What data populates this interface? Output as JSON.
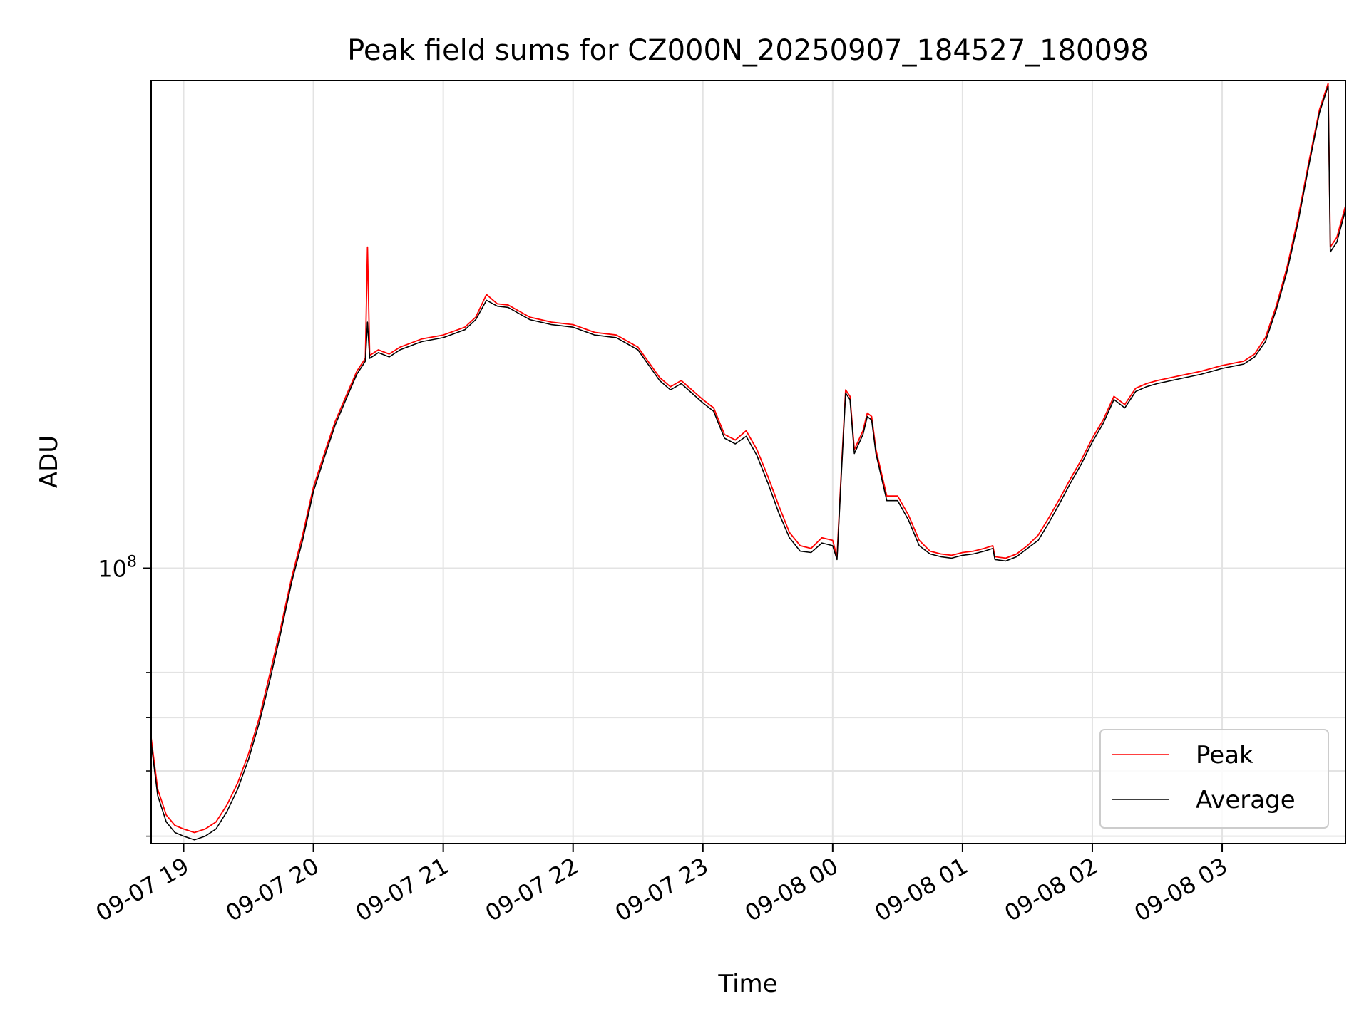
{
  "chart_data": {
    "type": "line",
    "title": "Peak field sums for CZ000N_20250907_184527_180098",
    "xlabel": "Time",
    "ylabel": "ADU",
    "x_tick_labels": [
      "09-07 19",
      "09-07 20",
      "09-07 21",
      "09-07 22",
      "09-07 23",
      "09-08 00",
      "09-08 01",
      "09-08 02",
      "09-08 03"
    ],
    "x_ticks": [
      "2025-09-07 19:00",
      "2025-09-07 20:00",
      "2025-09-07 21:00",
      "2025-09-07 22:00",
      "2025-09-07 23:00",
      "2025-09-08 00:00",
      "2025-09-08 01:00",
      "2025-09-08 02:00",
      "2025-09-08 03:00"
    ],
    "y_tick_labels": [
      {
        "base": "10",
        "exp": "8"
      }
    ],
    "y_ticks": [
      100000000
    ],
    "y_minor_ticks": [
      40000000,
      50000000,
      60000000,
      70000000
    ],
    "yscale": "log",
    "xlim": [
      "2025-09-07 18:45",
      "2025-09-08 03:57"
    ],
    "ylim": [
      39000000,
      530000000
    ],
    "grid": true,
    "legend_position": "lower right",
    "series": [
      {
        "name": "Peak",
        "color": "#ff0000",
        "points": [
          [
            "2025-09-07 18:45",
            56000000
          ],
          [
            "2025-09-07 18:48",
            47000000
          ],
          [
            "2025-09-07 18:52",
            43000000
          ],
          [
            "2025-09-07 18:56",
            41500000
          ],
          [
            "2025-09-07 19:00",
            41000000
          ],
          [
            "2025-09-07 19:05",
            40500000
          ],
          [
            "2025-09-07 19:10",
            41000000
          ],
          [
            "2025-09-07 19:15",
            42000000
          ],
          [
            "2025-09-07 19:20",
            44500000
          ],
          [
            "2025-09-07 19:25",
            48000000
          ],
          [
            "2025-09-07 19:30",
            53000000
          ],
          [
            "2025-09-07 19:35",
            60000000
          ],
          [
            "2025-09-07 19:40",
            70000000
          ],
          [
            "2025-09-07 19:45",
            82000000
          ],
          [
            "2025-09-07 19:50",
            97000000
          ],
          [
            "2025-09-07 19:55",
            112000000
          ],
          [
            "2025-09-07 20:00",
            132000000
          ],
          [
            "2025-09-07 20:05",
            148000000
          ],
          [
            "2025-09-07 20:10",
            165000000
          ],
          [
            "2025-09-07 20:15",
            180000000
          ],
          [
            "2025-09-07 20:20",
            196000000
          ],
          [
            "2025-09-07 20:24",
            205000000
          ],
          [
            "2025-09-07 20:25",
            300000000
          ],
          [
            "2025-09-07 20:26",
            207000000
          ],
          [
            "2025-09-07 20:30",
            211000000
          ],
          [
            "2025-09-07 20:35",
            208000000
          ],
          [
            "2025-09-07 20:40",
            213000000
          ],
          [
            "2025-09-07 20:50",
            219000000
          ],
          [
            "2025-09-07 21:00",
            222000000
          ],
          [
            "2025-09-07 21:10",
            228000000
          ],
          [
            "2025-09-07 21:15",
            236000000
          ],
          [
            "2025-09-07 21:20",
            255000000
          ],
          [
            "2025-09-07 21:25",
            247000000
          ],
          [
            "2025-09-07 21:30",
            246000000
          ],
          [
            "2025-09-07 21:40",
            236000000
          ],
          [
            "2025-09-07 21:50",
            232000000
          ],
          [
            "2025-09-07 22:00",
            230000000
          ],
          [
            "2025-09-07 22:10",
            224000000
          ],
          [
            "2025-09-07 22:20",
            222000000
          ],
          [
            "2025-09-07 22:30",
            213000000
          ],
          [
            "2025-09-07 22:40",
            192000000
          ],
          [
            "2025-09-07 22:45",
            186000000
          ],
          [
            "2025-09-07 22:50",
            190000000
          ],
          [
            "2025-09-07 23:00",
            178000000
          ],
          [
            "2025-09-07 23:05",
            173000000
          ],
          [
            "2025-09-07 23:10",
            158000000
          ],
          [
            "2025-09-07 23:15",
            155000000
          ],
          [
            "2025-09-07 23:20",
            160000000
          ],
          [
            "2025-09-07 23:25",
            150000000
          ],
          [
            "2025-09-07 23:30",
            137000000
          ],
          [
            "2025-09-07 23:35",
            124000000
          ],
          [
            "2025-09-07 23:40",
            113000000
          ],
          [
            "2025-09-07 23:45",
            108000000
          ],
          [
            "2025-09-07 23:50",
            107000000
          ],
          [
            "2025-09-07 23:55",
            111000000
          ],
          [
            "2025-09-08 00:00",
            110000000
          ],
          [
            "2025-09-08 00:02",
            104000000
          ],
          [
            "2025-09-08 00:04",
            140000000
          ],
          [
            "2025-09-08 00:06",
            184000000
          ],
          [
            "2025-09-08 00:08",
            180000000
          ],
          [
            "2025-09-08 00:10",
            150000000
          ],
          [
            "2025-09-08 00:14",
            160000000
          ],
          [
            "2025-09-08 00:16",
            170000000
          ],
          [
            "2025-09-08 00:18",
            168000000
          ],
          [
            "2025-09-08 00:20",
            150000000
          ],
          [
            "2025-09-08 00:25",
            128000000
          ],
          [
            "2025-09-08 00:30",
            128000000
          ],
          [
            "2025-09-08 00:35",
            120000000
          ],
          [
            "2025-09-08 00:40",
            110000000
          ],
          [
            "2025-09-08 00:45",
            106000000
          ],
          [
            "2025-09-08 00:50",
            105000000
          ],
          [
            "2025-09-08 00:55",
            104500000
          ],
          [
            "2025-09-08 01:00",
            105500000
          ],
          [
            "2025-09-08 01:05",
            106000000
          ],
          [
            "2025-09-08 01:10",
            107000000
          ],
          [
            "2025-09-08 01:14",
            108000000
          ],
          [
            "2025-09-08 01:15",
            104000000
          ],
          [
            "2025-09-08 01:20",
            103500000
          ],
          [
            "2025-09-08 01:25",
            105000000
          ],
          [
            "2025-09-08 01:30",
            108000000
          ],
          [
            "2025-09-08 01:35",
            112000000
          ],
          [
            "2025-09-08 01:40",
            119000000
          ],
          [
            "2025-09-08 01:45",
            127000000
          ],
          [
            "2025-09-08 01:50",
            136000000
          ],
          [
            "2025-09-08 01:55",
            145000000
          ],
          [
            "2025-09-08 02:00",
            156000000
          ],
          [
            "2025-09-08 02:05",
            166000000
          ],
          [
            "2025-09-08 02:10",
            180000000
          ],
          [
            "2025-09-08 02:15",
            175000000
          ],
          [
            "2025-09-08 02:20",
            185000000
          ],
          [
            "2025-09-08 02:25",
            188000000
          ],
          [
            "2025-09-08 02:30",
            190000000
          ],
          [
            "2025-09-08 02:40",
            193000000
          ],
          [
            "2025-09-08 02:50",
            196000000
          ],
          [
            "2025-09-08 03:00",
            200000000
          ],
          [
            "2025-09-08 03:10",
            203000000
          ],
          [
            "2025-09-08 03:15",
            208000000
          ],
          [
            "2025-09-08 03:20",
            220000000
          ],
          [
            "2025-09-08 03:25",
            245000000
          ],
          [
            "2025-09-08 03:30",
            280000000
          ],
          [
            "2025-09-08 03:35",
            330000000
          ],
          [
            "2025-09-08 03:40",
            400000000
          ],
          [
            "2025-09-08 03:45",
            480000000
          ],
          [
            "2025-09-08 03:49",
            525000000
          ],
          [
            "2025-09-08 03:50",
            300000000
          ],
          [
            "2025-09-08 03:53",
            310000000
          ],
          [
            "2025-09-08 03:57",
            345000000
          ]
        ]
      },
      {
        "name": "Average",
        "color": "#000000",
        "points": [
          [
            "2025-09-07 18:45",
            55000000
          ],
          [
            "2025-09-07 18:48",
            46000000
          ],
          [
            "2025-09-07 18:52",
            42000000
          ],
          [
            "2025-09-07 18:56",
            40500000
          ],
          [
            "2025-09-07 19:00",
            40000000
          ],
          [
            "2025-09-07 19:05",
            39500000
          ],
          [
            "2025-09-07 19:10",
            40000000
          ],
          [
            "2025-09-07 19:15",
            41000000
          ],
          [
            "2025-09-07 19:20",
            43500000
          ],
          [
            "2025-09-07 19:25",
            47000000
          ],
          [
            "2025-09-07 19:30",
            52000000
          ],
          [
            "2025-09-07 19:35",
            59000000
          ],
          [
            "2025-09-07 19:40",
            68500000
          ],
          [
            "2025-09-07 19:45",
            80500000
          ],
          [
            "2025-09-07 19:50",
            95500000
          ],
          [
            "2025-09-07 19:55",
            110000000
          ],
          [
            "2025-09-07 20:00",
            130000000
          ],
          [
            "2025-09-07 20:05",
            146000000
          ],
          [
            "2025-09-07 20:10",
            163000000
          ],
          [
            "2025-09-07 20:15",
            178000000
          ],
          [
            "2025-09-07 20:20",
            194000000
          ],
          [
            "2025-09-07 20:24",
            203000000
          ],
          [
            "2025-09-07 20:25",
            232000000
          ],
          [
            "2025-09-07 20:26",
            205000000
          ],
          [
            "2025-09-07 20:30",
            209000000
          ],
          [
            "2025-09-07 20:35",
            206000000
          ],
          [
            "2025-09-07 20:40",
            211000000
          ],
          [
            "2025-09-07 20:50",
            217000000
          ],
          [
            "2025-09-07 21:00",
            220000000
          ],
          [
            "2025-09-07 21:10",
            226000000
          ],
          [
            "2025-09-07 21:15",
            234000000
          ],
          [
            "2025-09-07 21:20",
            250000000
          ],
          [
            "2025-09-07 21:25",
            245000000
          ],
          [
            "2025-09-07 21:30",
            244000000
          ],
          [
            "2025-09-07 21:40",
            234000000
          ],
          [
            "2025-09-07 21:50",
            230000000
          ],
          [
            "2025-09-07 22:00",
            228000000
          ],
          [
            "2025-09-07 22:10",
            222000000
          ],
          [
            "2025-09-07 22:20",
            220000000
          ],
          [
            "2025-09-07 22:30",
            211000000
          ],
          [
            "2025-09-07 22:40",
            190000000
          ],
          [
            "2025-09-07 22:45",
            184000000
          ],
          [
            "2025-09-07 22:50",
            188000000
          ],
          [
            "2025-09-07 23:00",
            176000000
          ],
          [
            "2025-09-07 23:05",
            171000000
          ],
          [
            "2025-09-07 23:10",
            156000000
          ],
          [
            "2025-09-07 23:15",
            153000000
          ],
          [
            "2025-09-07 23:20",
            157000000
          ],
          [
            "2025-09-07 23:25",
            147000000
          ],
          [
            "2025-09-07 23:30",
            134000000
          ],
          [
            "2025-09-07 23:35",
            121000000
          ],
          [
            "2025-09-07 23:40",
            111000000
          ],
          [
            "2025-09-07 23:45",
            106000000
          ],
          [
            "2025-09-07 23:50",
            105500000
          ],
          [
            "2025-09-07 23:55",
            109000000
          ],
          [
            "2025-09-08 00:00",
            108000000
          ],
          [
            "2025-09-08 00:02",
            103000000
          ],
          [
            "2025-09-08 00:04",
            138000000
          ],
          [
            "2025-09-08 00:06",
            182000000
          ],
          [
            "2025-09-08 00:08",
            178000000
          ],
          [
            "2025-09-08 00:10",
            148000000
          ],
          [
            "2025-09-08 00:14",
            158000000
          ],
          [
            "2025-09-08 00:16",
            168000000
          ],
          [
            "2025-09-08 00:18",
            166000000
          ],
          [
            "2025-09-08 00:20",
            148000000
          ],
          [
            "2025-09-08 00:25",
            126000000
          ],
          [
            "2025-09-08 00:30",
            126000000
          ],
          [
            "2025-09-08 00:35",
            118000000
          ],
          [
            "2025-09-08 00:40",
            108000000
          ],
          [
            "2025-09-08 00:45",
            105000000
          ],
          [
            "2025-09-08 00:50",
            104000000
          ],
          [
            "2025-09-08 00:55",
            103500000
          ],
          [
            "2025-09-08 01:00",
            104500000
          ],
          [
            "2025-09-08 01:05",
            105000000
          ],
          [
            "2025-09-08 01:10",
            106000000
          ],
          [
            "2025-09-08 01:14",
            107000000
          ],
          [
            "2025-09-08 01:15",
            103000000
          ],
          [
            "2025-09-08 01:20",
            102500000
          ],
          [
            "2025-09-08 01:25",
            104000000
          ],
          [
            "2025-09-08 01:30",
            107000000
          ],
          [
            "2025-09-08 01:35",
            110000000
          ],
          [
            "2025-09-08 01:40",
            117000000
          ],
          [
            "2025-09-08 01:45",
            125000000
          ],
          [
            "2025-09-08 01:50",
            134000000
          ],
          [
            "2025-09-08 01:55",
            143000000
          ],
          [
            "2025-09-08 02:00",
            154000000
          ],
          [
            "2025-09-08 02:05",
            164000000
          ],
          [
            "2025-09-08 02:10",
            178000000
          ],
          [
            "2025-09-08 02:15",
            173000000
          ],
          [
            "2025-09-08 02:20",
            183000000
          ],
          [
            "2025-09-08 02:25",
            186000000
          ],
          [
            "2025-09-08 02:30",
            188000000
          ],
          [
            "2025-09-08 02:40",
            191000000
          ],
          [
            "2025-09-08 02:50",
            194000000
          ],
          [
            "2025-09-08 03:00",
            198000000
          ],
          [
            "2025-09-08 03:10",
            201000000
          ],
          [
            "2025-09-08 03:15",
            206000000
          ],
          [
            "2025-09-08 03:20",
            217000000
          ],
          [
            "2025-09-08 03:25",
            242000000
          ],
          [
            "2025-09-08 03:30",
            276000000
          ],
          [
            "2025-09-08 03:35",
            325000000
          ],
          [
            "2025-09-08 03:40",
            395000000
          ],
          [
            "2025-09-08 03:45",
            475000000
          ],
          [
            "2025-09-08 03:49",
            520000000
          ],
          [
            "2025-09-08 03:50",
            295000000
          ],
          [
            "2025-09-08 03:53",
            305000000
          ],
          [
            "2025-09-08 03:57",
            340000000
          ]
        ]
      }
    ]
  }
}
